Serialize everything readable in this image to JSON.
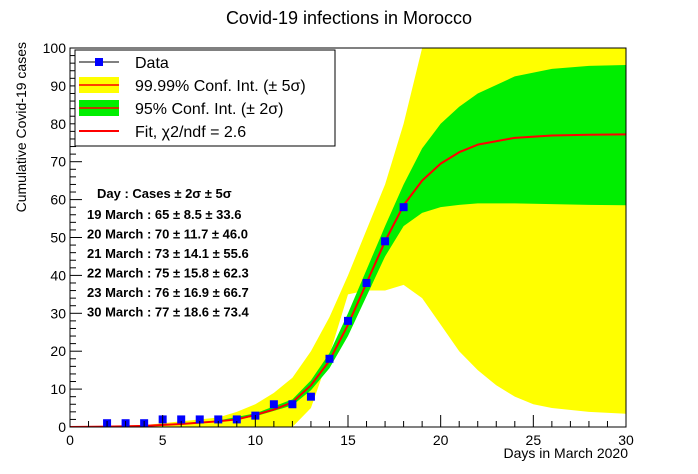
{
  "chart_data": {
    "type": "scatter",
    "title": "Covid-19 infections in Morocco",
    "xlabel": "Days in March 2020",
    "ylabel": "Cumulative Covid-19 cases",
    "xlim": [
      0,
      30
    ],
    "ylim": [
      0,
      100
    ],
    "x_ticks": [
      "0",
      "5",
      "10",
      "15",
      "20",
      "25",
      "30"
    ],
    "y_ticks": [
      "0",
      "10",
      "20",
      "30",
      "40",
      "50",
      "60",
      "70",
      "80",
      "90",
      "100"
    ],
    "grid": false,
    "legend_placement": "top-left",
    "legend": [
      {
        "label": "Data",
        "kind": "marker"
      },
      {
        "label": "99.99% Conf. Int. (± 5σ)",
        "kind": "band5"
      },
      {
        "label": "95% Conf. Int. (± 2σ)",
        "kind": "band2"
      },
      {
        "label": "Fit, χ2/ndf = 2.6",
        "kind": "line"
      }
    ],
    "colors": {
      "data": "#0000ff",
      "band5": "#ffff00",
      "band2": "#00ee00",
      "fit": "#ff0000"
    },
    "data_points": {
      "x": [
        2,
        3,
        4,
        5,
        6,
        7,
        8,
        9,
        10,
        11,
        12,
        13,
        14,
        15,
        16,
        17,
        18
      ],
      "y": [
        1,
        1,
        1,
        2,
        2,
        2,
        2,
        2,
        3,
        6,
        6,
        8,
        18,
        28,
        38,
        49,
        58
      ]
    },
    "fit_curve": {
      "x": [
        0,
        2,
        4,
        6,
        8,
        9,
        10,
        11,
        12,
        13,
        14,
        15,
        16,
        17,
        18,
        19,
        20,
        21,
        22,
        24,
        26,
        28,
        30
      ],
      "y": [
        0,
        0.1,
        0.3,
        0.8,
        1.5,
        2.0,
        3.2,
        4.6,
        6.5,
        11.0,
        17.5,
        27.0,
        38.0,
        49.0,
        58.5,
        65.0,
        69.5,
        72.5,
        74.5,
        76.3,
        76.9,
        77.1,
        77.2
      ]
    },
    "band_2sigma": {
      "x": [
        0,
        4,
        8,
        10,
        12,
        13,
        14,
        15,
        16,
        17,
        18,
        19,
        20,
        21,
        22,
        24,
        26,
        28,
        30
      ],
      "upper": [
        0,
        0.3,
        1.7,
        3.6,
        7.3,
        12.3,
        19.5,
        30.0,
        41.5,
        53.0,
        64.0,
        73.5,
        80.0,
        84.5,
        88.0,
        92.5,
        94.5,
        95.3,
        95.5
      ],
      "lower": [
        0,
        0.3,
        1.3,
        2.8,
        5.7,
        9.7,
        15.5,
        24.0,
        34.5,
        45.0,
        53.0,
        56.5,
        58.0,
        58.6,
        59.0,
        59.0,
        58.8,
        58.6,
        58.5
      ]
    },
    "band_5sigma": {
      "x": [
        0,
        4,
        8,
        9,
        10,
        11,
        12,
        13,
        14,
        15,
        16,
        17,
        18,
        19,
        20,
        21,
        22,
        23,
        24,
        25,
        26,
        28,
        30
      ],
      "upper": [
        0,
        0.5,
        2.5,
        4.0,
        6.0,
        9.0,
        13.0,
        20.0,
        29.0,
        40.0,
        52.0,
        64.0,
        80.0,
        100,
        100,
        100,
        100,
        100,
        100,
        100,
        100,
        100,
        100
      ],
      "lower": [
        0,
        0,
        0,
        0,
        0,
        0,
        0,
        5.0,
        19.0,
        35.0,
        36.0,
        36.0,
        37.5,
        34.0,
        27.0,
        20.0,
        15.0,
        11.0,
        8.0,
        6.0,
        5.0,
        4.0,
        3.5
      ]
    },
    "annotation": {
      "header": "Day    : Cases ± 2σ ± 5σ",
      "rows": [
        "19 March : 65 ± 8.5 ± 33.6",
        "20 March : 70 ± 11.7 ± 46.0",
        "21 March : 73 ± 14.1 ± 55.6",
        "22 March : 75 ± 15.8 ± 62.3",
        "23 March : 76 ± 16.9 ± 66.7",
        "30 March : 77 ± 18.6 ± 73.4"
      ]
    }
  }
}
